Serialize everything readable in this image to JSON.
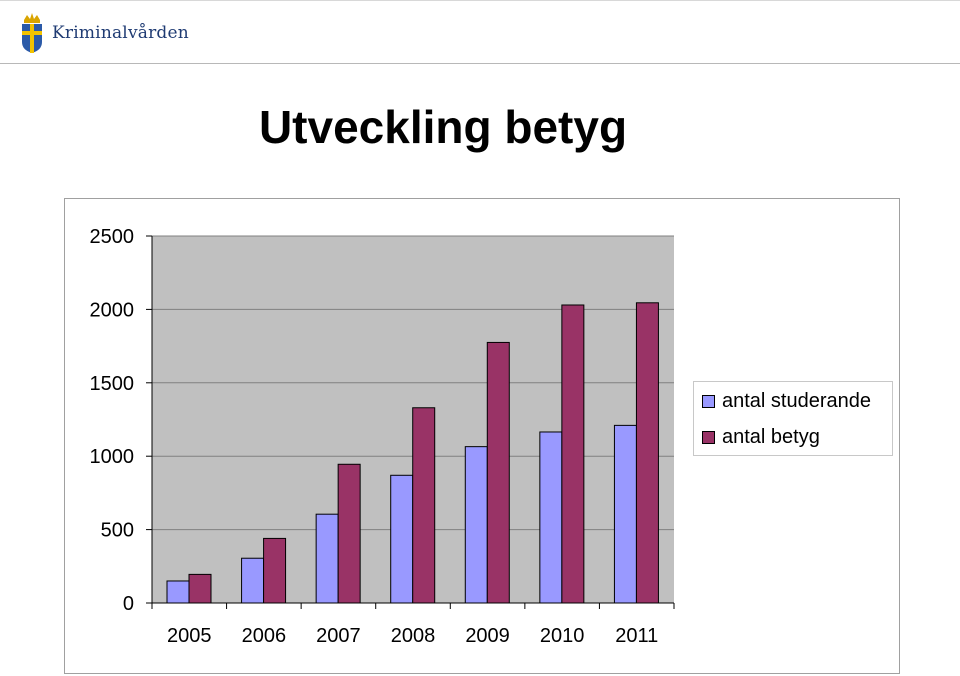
{
  "header": {
    "brand_name": "Kriminalvården",
    "logo_icon": "swedish-crown-shield-icon"
  },
  "slide": {
    "title": "Utveckling betyg"
  },
  "colors": {
    "plot_background": "#c0c0c0",
    "series_1": "#9999ff",
    "series_2": "#993366",
    "brand": "#1f3b73"
  },
  "chart_data": {
    "type": "bar",
    "title": "Utveckling betyg",
    "categories": [
      "2005",
      "2006",
      "2007",
      "2008",
      "2009",
      "2010",
      "2011"
    ],
    "series": [
      {
        "name": "antal studerande",
        "color": "#9999ff",
        "values": [
          150,
          305,
          605,
          870,
          1065,
          1165,
          1210
        ]
      },
      {
        "name": "antal betyg",
        "color": "#993366",
        "values": [
          195,
          440,
          945,
          1330,
          1775,
          2030,
          2045
        ]
      }
    ],
    "xlabel": "",
    "ylabel": "",
    "ylim": [
      0,
      2500
    ],
    "yticks": [
      0,
      500,
      1000,
      1500,
      2000,
      2500
    ],
    "grid": true,
    "legend_position": "right"
  }
}
